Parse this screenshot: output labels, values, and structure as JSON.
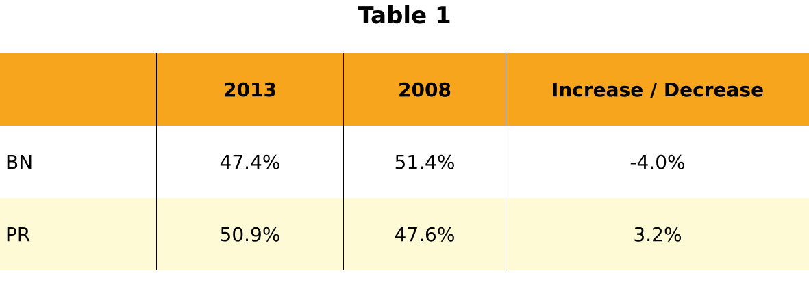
{
  "title": "Table 1",
  "table": {
    "header": [
      "2013",
      "2008",
      "Increase / Decrease"
    ],
    "rows": [
      [
        "BN",
        "47.4%",
        "51.4%",
        "-4.0%"
      ],
      [
        "PR",
        "50.9%",
        "47.6%",
        "3.2%"
      ]
    ]
  }
}
